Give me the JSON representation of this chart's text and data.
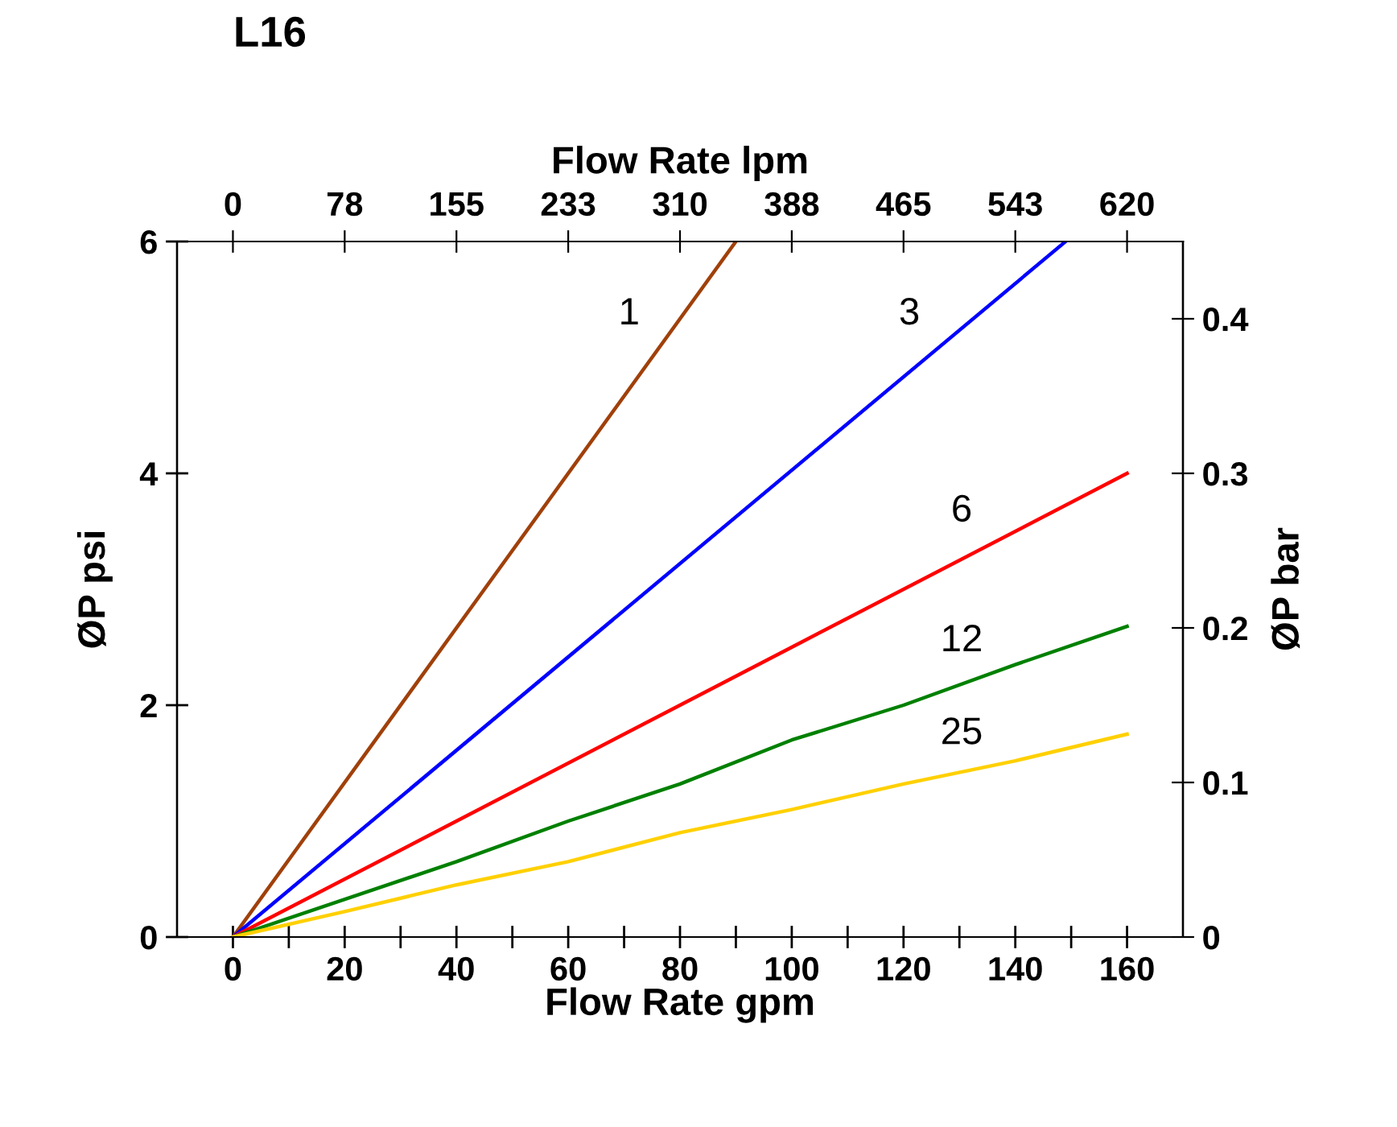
{
  "chart_data": {
    "type": "line",
    "title": "L16",
    "xlabel": "Flow Rate gpm",
    "x2label": "Flow Rate lpm",
    "ylabel": "ØP psi",
    "y2label": "ØP bar",
    "xlim": [
      -10,
      170
    ],
    "xticks": [
      0,
      20,
      40,
      60,
      80,
      100,
      120,
      140,
      160,
      {
        "value": 10,
        "label": null
      },
      {
        "value": 30,
        "label": null
      },
      {
        "value": 50,
        "label": null
      },
      {
        "value": 70,
        "label": null
      },
      {
        "value": 90,
        "label": null
      },
      {
        "value": 110,
        "label": null
      },
      {
        "value": 130,
        "label": null
      },
      {
        "value": 150,
        "label": null
      }
    ],
    "x2lim": [
      -38.75,
      658.75
    ],
    "x2ticks": [
      0,
      {
        "value": 77.5,
        "label": "78"
      },
      155,
      {
        "value": 232.5,
        "label": "233"
      },
      310,
      {
        "value": 387.5,
        "label": "388"
      },
      465,
      {
        "value": 542.5,
        "label": "543"
      },
      620
    ],
    "ylim": [
      0,
      6
    ],
    "yticks": [
      0,
      2,
      4,
      6
    ],
    "y2lim": [
      0,
      0.45
    ],
    "y2ticks": [
      0,
      0.1,
      0.2,
      0.3,
      0.4
    ],
    "grid": false,
    "legend": false,
    "marker": "none",
    "line_style": "solid",
    "series": [
      {
        "name": "1",
        "color": "#a0400a",
        "x": [
          0,
          90
        ],
        "values": [
          0,
          6
        ]
      },
      {
        "name": "3",
        "color": "#0000ff",
        "x": [
          0,
          149
        ],
        "values": [
          0,
          6
        ]
      },
      {
        "name": "6",
        "color": "#ff0000",
        "x": [
          0,
          40,
          80,
          100,
          160
        ],
        "values": [
          0,
          1.0,
          2.0,
          2.5,
          4.0
        ]
      },
      {
        "name": "12",
        "color": "#008000",
        "x": [
          0,
          40,
          60,
          80,
          100,
          120,
          140,
          160
        ],
        "values": [
          0,
          0.65,
          1.0,
          1.32,
          1.7,
          2.0,
          2.35,
          2.68
        ]
      },
      {
        "name": "25",
        "color": "#ffd000",
        "x": [
          0,
          20,
          40,
          60,
          80,
          100,
          120,
          140,
          160
        ],
        "values": [
          0,
          0.22,
          0.45,
          0.65,
          0.9,
          1.1,
          1.32,
          1.52,
          1.75
        ]
      }
    ]
  }
}
